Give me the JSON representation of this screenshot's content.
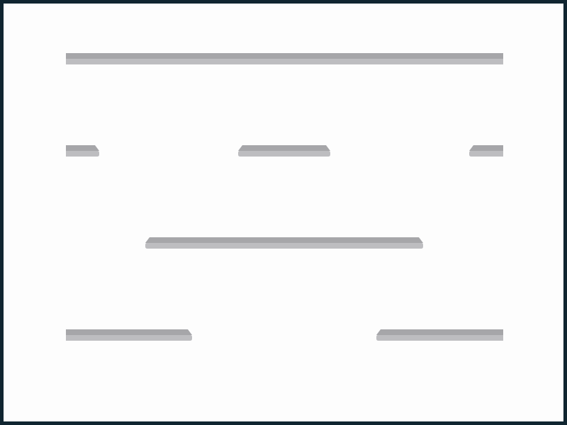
{
  "scene": {
    "background": "#fdfdfd",
    "frame_color": "#102530",
    "platform_top_color": "#a6a6a9",
    "platform_bottom_color": "#bdbdc0"
  },
  "platforms": [
    {
      "id": "row-1-full",
      "left_end": "flat",
      "right_end": "flat"
    },
    {
      "id": "row-2-left",
      "left_end": "flat",
      "right_end": "beveled"
    },
    {
      "id": "row-2-center",
      "left_end": "beveled",
      "right_end": "beveled"
    },
    {
      "id": "row-2-right",
      "left_end": "beveled",
      "right_end": "flat"
    },
    {
      "id": "row-3-center",
      "left_end": "beveled",
      "right_end": "beveled"
    },
    {
      "id": "row-4-left",
      "left_end": "flat",
      "right_end": "beveled"
    },
    {
      "id": "row-4-right",
      "left_end": "beveled",
      "right_end": "flat"
    }
  ]
}
